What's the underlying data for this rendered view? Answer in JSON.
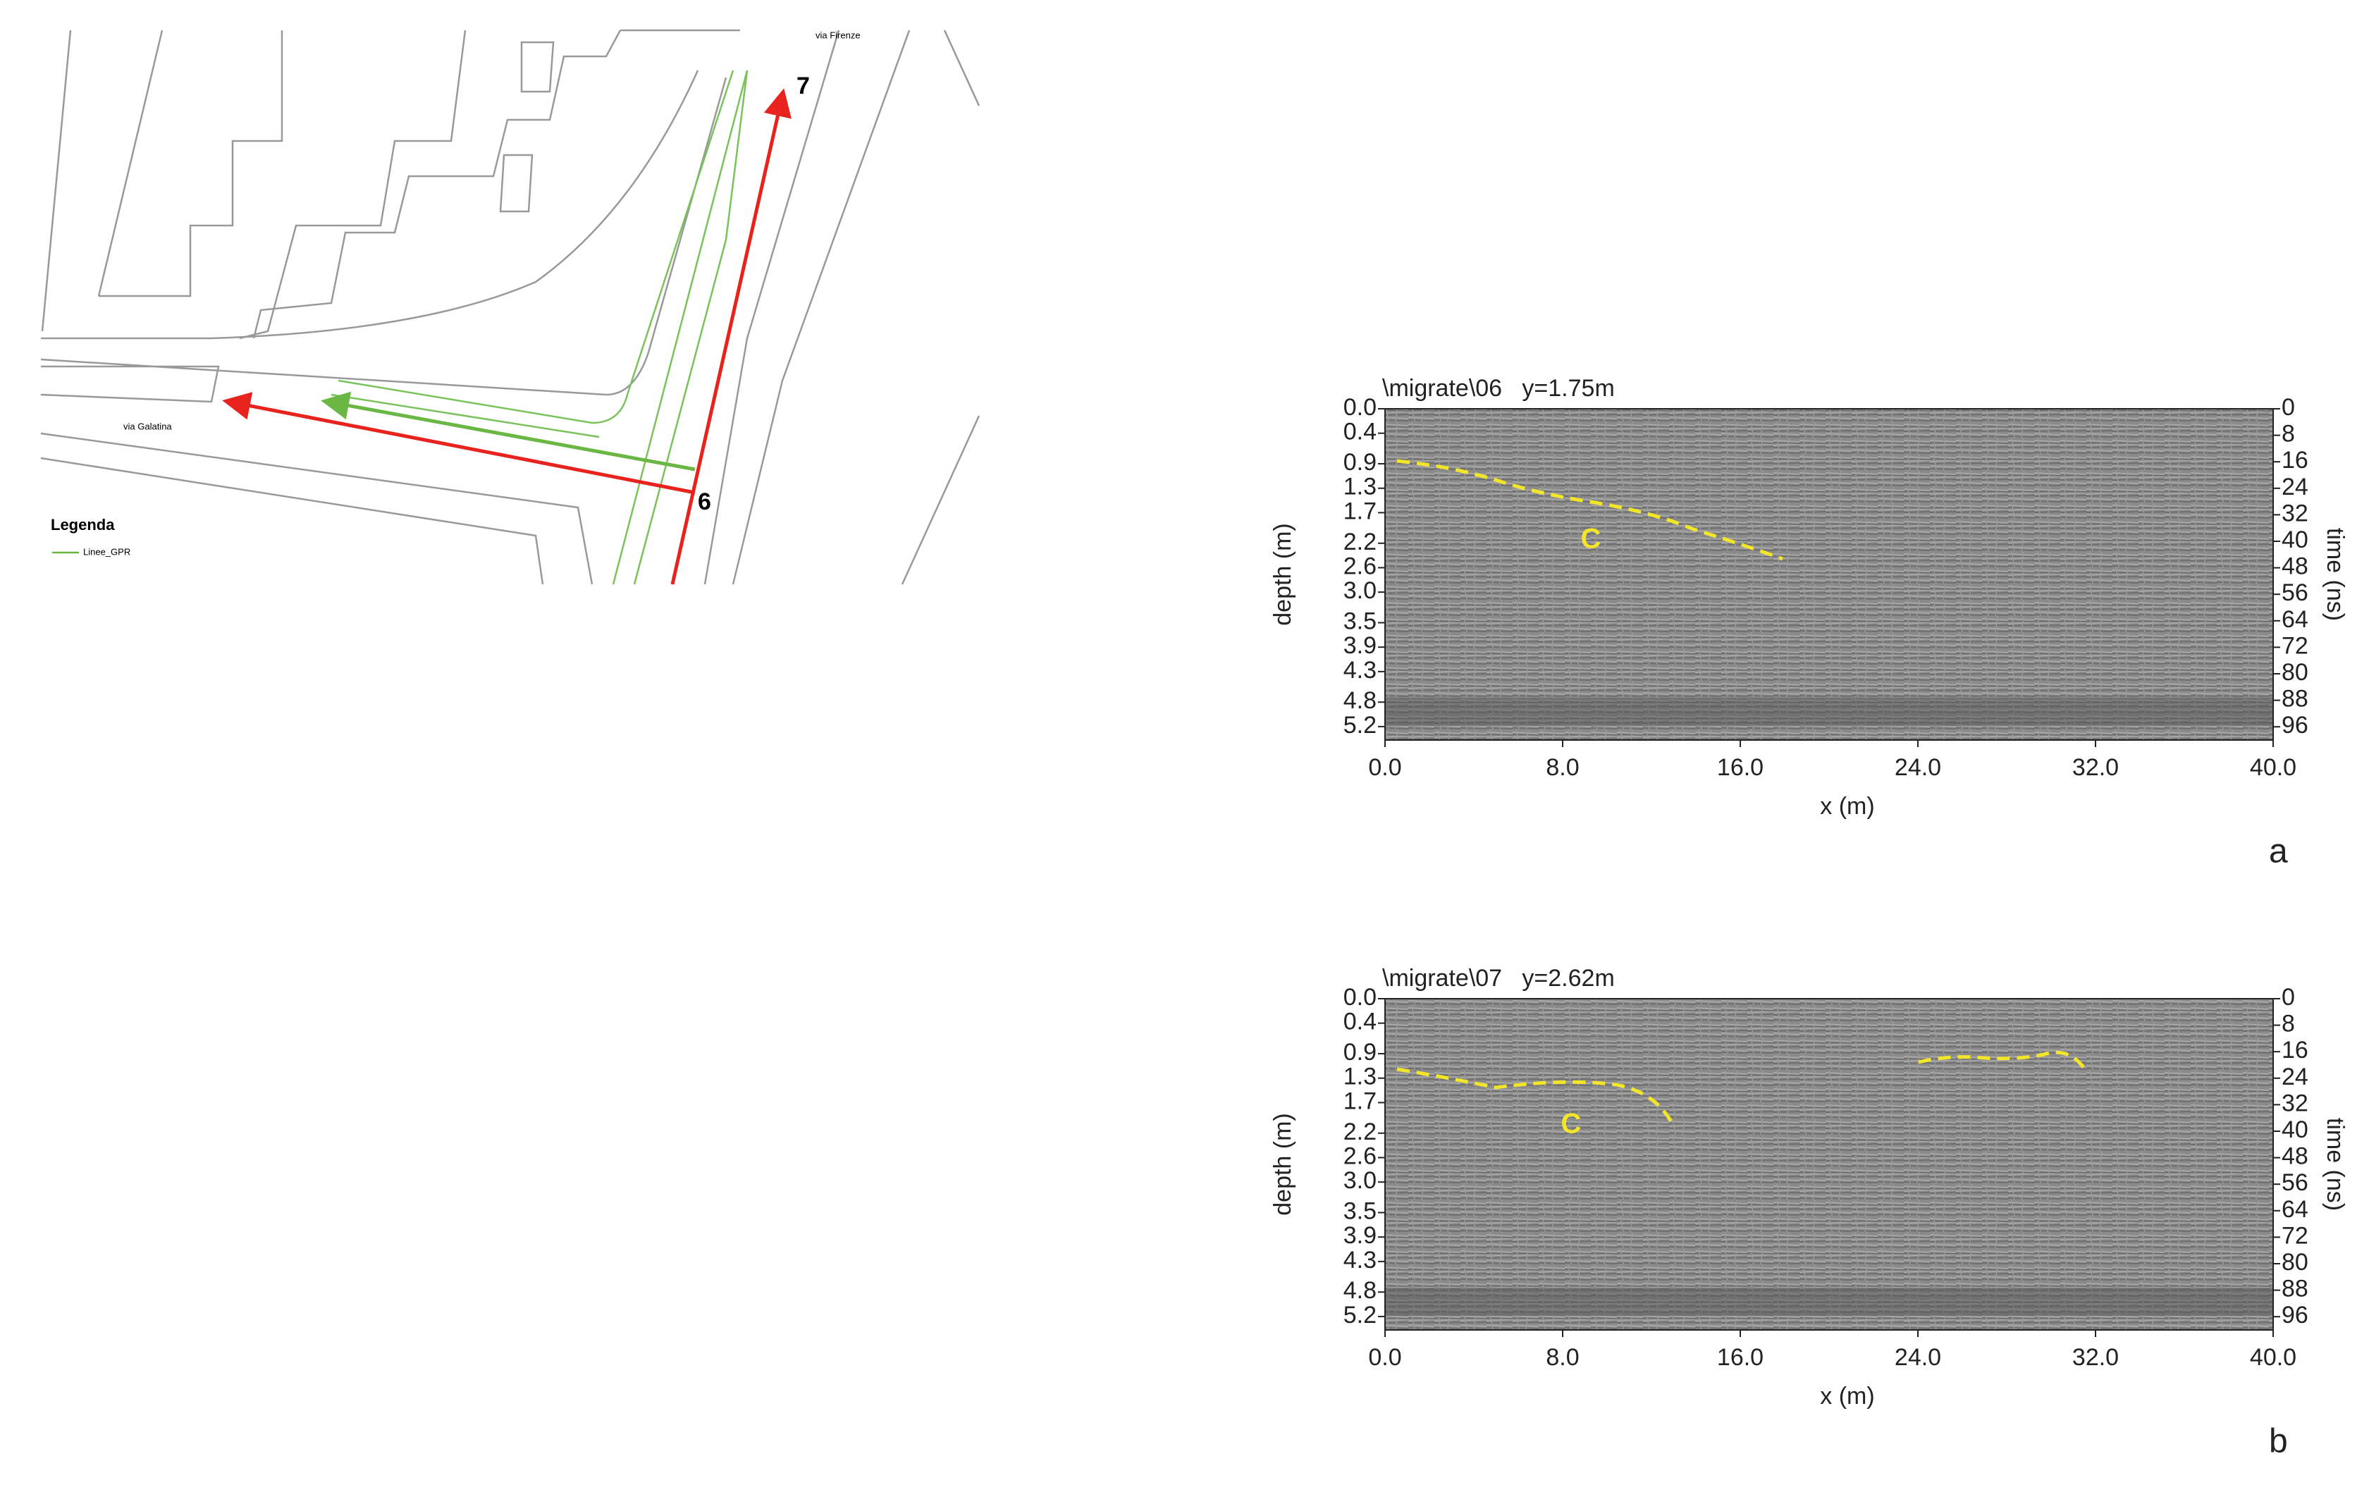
{
  "map": {
    "street_north": "via Firenze",
    "street_west": "via Galatina",
    "point_6": "6",
    "point_7": "7",
    "legend": {
      "title": "Legenda",
      "entry": "Linee_GPR"
    }
  },
  "panels": [
    {
      "title": "\\migrate\\06   y=1.75m",
      "panel_label": "a",
      "annotation": "C",
      "x_label": "x (m)",
      "depth_label": "depth (m)",
      "time_label": "time (ns)",
      "xlim": [
        0,
        40
      ],
      "xticks": [
        {
          "value": 0,
          "label": "0.0"
        },
        {
          "value": 8,
          "label": "8.0"
        },
        {
          "value": 16,
          "label": "16.0"
        },
        {
          "value": 24,
          "label": "24.0"
        },
        {
          "value": 32,
          "label": "32.0"
        },
        {
          "value": 40,
          "label": "40.0"
        }
      ],
      "tlim": [
        0,
        100
      ],
      "time_ticks": [
        0,
        8,
        16,
        24,
        32,
        40,
        48,
        56,
        64,
        72,
        80,
        88,
        96
      ],
      "dlim": [
        0,
        5.42
      ],
      "depth_ticks": [
        {
          "value": 0,
          "label": "0.0"
        },
        0.4,
        0.9,
        1.3,
        1.7,
        2.2,
        2.6,
        {
          "value": 3,
          "label": "3.0"
        },
        3.5,
        3.9,
        4.3,
        4.8,
        5.2
      ]
    },
    {
      "title": "\\migrate\\07   y=2.62m",
      "panel_label": "b",
      "annotation": "C",
      "x_label": "x (m)",
      "depth_label": "depth (m)",
      "time_label": "time (ns)",
      "xlim": [
        0,
        40
      ],
      "xticks": [
        {
          "value": 0,
          "label": "0.0"
        },
        {
          "value": 8,
          "label": "8.0"
        },
        {
          "value": 16,
          "label": "16.0"
        },
        {
          "value": 24,
          "label": "24.0"
        },
        {
          "value": 32,
          "label": "32.0"
        },
        {
          "value": 40,
          "label": "40.0"
        }
      ],
      "tlim": [
        0,
        100
      ],
      "time_ticks": [
        0,
        8,
        16,
        24,
        32,
        40,
        48,
        56,
        64,
        72,
        80,
        88,
        96
      ],
      "dlim": [
        0,
        5.42
      ],
      "depth_ticks": [
        {
          "value": 0,
          "label": "0.0"
        },
        0.4,
        0.9,
        1.3,
        1.7,
        2.2,
        2.6,
        {
          "value": 3,
          "label": "3.0"
        },
        3.5,
        3.9,
        4.3,
        4.8,
        5.2
      ]
    }
  ]
}
